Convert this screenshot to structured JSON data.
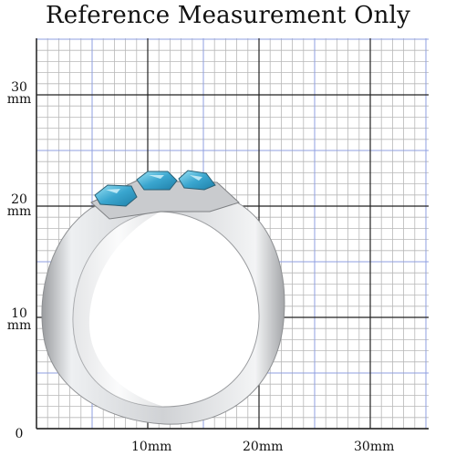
{
  "title": "Reference Measurement Only",
  "y_axis": {
    "zero": "0",
    "ticks": [
      {
        "value": "30",
        "unit": "mm"
      },
      {
        "value": "20",
        "unit": "mm"
      },
      {
        "value": "10",
        "unit": "mm"
      }
    ]
  },
  "x_axis": {
    "ticks": [
      "10mm",
      "20mm",
      "30mm"
    ]
  },
  "colors": {
    "minor_grid": "#b8b8b8",
    "blue_grid": "#8f9fe0",
    "major_grid": "#222222",
    "ring_metal": "#dcdddf",
    "gemstone": "#4ab3d4"
  },
  "subject": {
    "gem_count": 3,
    "icon": "ring-icon"
  }
}
